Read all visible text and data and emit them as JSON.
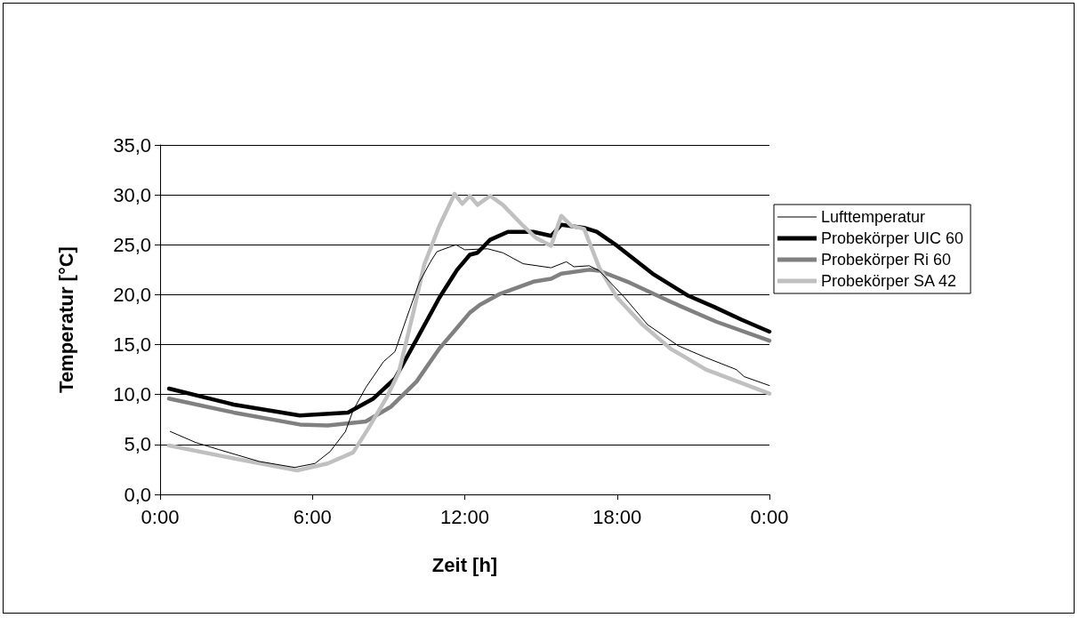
{
  "chart_data": {
    "type": "line",
    "xlabel": "Zeit [h]",
    "ylabel": "Temperatur [°C]",
    "xlim": [
      0,
      24
    ],
    "xticks": [
      {
        "value": 0,
        "label": "0:00"
      },
      {
        "value": 6,
        "label": "6:00"
      },
      {
        "value": 12,
        "label": "12:00"
      },
      {
        "value": 18,
        "label": "18:00"
      },
      {
        "value": 24,
        "label": "0:00"
      }
    ],
    "ylim": [
      0,
      35
    ],
    "yticks": [
      {
        "value": 0,
        "label": "0,0"
      },
      {
        "value": 5,
        "label": "5,0"
      },
      {
        "value": 10,
        "label": "10,0"
      },
      {
        "value": 15,
        "label": "15,0"
      },
      {
        "value": 20,
        "label": "20,0"
      },
      {
        "value": 25,
        "label": "25,0"
      },
      {
        "value": 30,
        "label": "30,0"
      },
      {
        "value": 35,
        "label": "35,0"
      }
    ],
    "grid": "y",
    "legend": "right",
    "marker": "none",
    "line_style": "solid",
    "series": [
      {
        "name": "Lufttemperatur",
        "color": "#000000",
        "x": [
          0.4,
          1.4,
          2.3,
          3.9,
          5.3,
          6.1,
          6.7,
          7.3,
          7.6,
          8.1,
          8.8,
          9.25,
          9.7,
          10.2,
          10.65,
          10.9,
          11.1,
          11.65,
          12.0,
          12.9,
          13.5,
          14.3,
          15.4,
          16.0,
          16.3,
          16.9,
          17.3,
          18.3,
          19.2,
          20.4,
          21.5,
          22.7,
          23.0,
          24.0
        ],
        "values": [
          6.3,
          5.2,
          4.5,
          3.3,
          2.7,
          3.1,
          4.3,
          6.3,
          8.4,
          10.7,
          13.3,
          14.3,
          17.6,
          21.2,
          23.3,
          24.3,
          24.5,
          25.0,
          24.5,
          24.6,
          24.2,
          23.1,
          22.7,
          23.3,
          22.8,
          22.9,
          22.4,
          19.7,
          17.0,
          14.9,
          13.7,
          12.5,
          11.8,
          10.9
        ]
      },
      {
        "name": "Probekörper UIC 60",
        "color": "#000000",
        "x": [
          0.35,
          2.9,
          5.5,
          7.4,
          8.4,
          9.25,
          10.1,
          11.0,
          11.7,
          12.2,
          12.5,
          13.0,
          13.7,
          14.7,
          15.4,
          15.8,
          16.7,
          17.2,
          18.0,
          19.4,
          20.8,
          21.8,
          22.9,
          24.0
        ],
        "values": [
          10.6,
          9.0,
          7.9,
          8.2,
          9.6,
          11.6,
          15.5,
          19.7,
          22.5,
          24.0,
          24.2,
          25.5,
          26.3,
          26.3,
          25.9,
          27.0,
          26.7,
          26.3,
          24.9,
          22.1,
          19.9,
          18.8,
          17.5,
          16.3
        ]
      },
      {
        "name": "Probekörper Ri 60",
        "color": "#808080",
        "x": [
          0.35,
          2.9,
          5.5,
          6.6,
          8.1,
          9.1,
          10.1,
          11.0,
          11.7,
          12.2,
          12.6,
          13.4,
          14.7,
          15.4,
          15.8,
          16.9,
          17.3,
          18.5,
          20.1,
          21.9,
          24.0
        ],
        "values": [
          9.6,
          8.2,
          7.0,
          6.9,
          7.3,
          8.8,
          11.3,
          14.6,
          16.7,
          18.2,
          19.0,
          20.1,
          21.3,
          21.6,
          22.1,
          22.5,
          22.4,
          21.2,
          19.3,
          17.3,
          15.4
        ]
      },
      {
        "name": "Probekörper SA 42",
        "color": "#c0c0c0",
        "x": [
          0.35,
          2.9,
          5.4,
          6.6,
          7.6,
          8.2,
          8.9,
          9.4,
          10.0,
          10.4,
          11.0,
          11.6,
          11.9,
          12.2,
          12.5,
          13.0,
          13.5,
          14.3,
          14.8,
          15.4,
          15.8,
          16.2,
          16.7,
          17.3,
          18.0,
          19.0,
          20.1,
          21.5,
          24.0
        ],
        "values": [
          4.9,
          3.6,
          2.4,
          3.1,
          4.2,
          6.6,
          9.6,
          12.2,
          18.5,
          23.0,
          26.9,
          30.1,
          29.1,
          29.9,
          29.0,
          29.9,
          29.0,
          26.9,
          25.7,
          24.9,
          27.9,
          26.9,
          26.6,
          22.7,
          19.7,
          17.0,
          14.6,
          12.5,
          10.1
        ]
      }
    ]
  }
}
